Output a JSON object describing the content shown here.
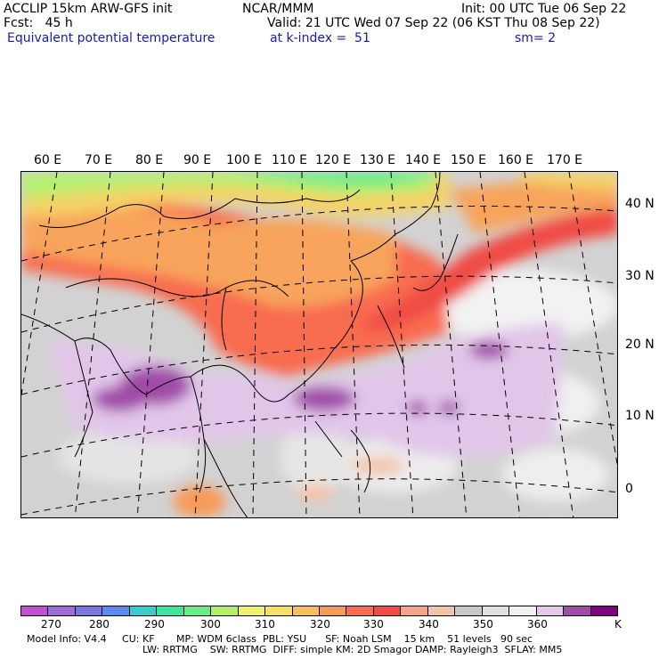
{
  "header": {
    "model": "ACCLIP 15km ARW-GFS init",
    "institution": "NCAR/MMM",
    "init": "Init: 00 UTC Tue 06 Sep 22",
    "fcst": "Fcst:   45 h",
    "valid": "Valid: 21 UTC Wed 07 Sep 22 (06 KST Thu 08 Sep 22)",
    "field": "Equivalent potential temperature",
    "level": "at k-index =  51",
    "smooth": "sm= 2"
  },
  "map": {
    "lon_labels": [
      "60 E",
      "70 E",
      "80 E",
      "90 E",
      "100 E",
      "110 E",
      "120 E",
      "130 E",
      "140 E",
      "150 E",
      "160 E",
      "170 E"
    ],
    "lat_labels": [
      "40 N",
      "30 N",
      "20 N",
      "10 N",
      "0"
    ]
  },
  "colorbar": {
    "colors": [
      "#c050d0",
      "#9c6cd8",
      "#7878e0",
      "#5a8cf0",
      "#3ccccc",
      "#3ee6a0",
      "#66ee88",
      "#b2f066",
      "#f0f070",
      "#f8e068",
      "#f8c05c",
      "#f89a58",
      "#f86c50",
      "#f04c44",
      "#f4a488",
      "#f4c4a8",
      "#c8c8c8",
      "#e0e0e0",
      "#f0f0f0",
      "#e6c8ea",
      "#a04ca8",
      "#800080"
    ],
    "ticks": [
      "270",
      "280",
      "290",
      "300",
      "310",
      "320",
      "330",
      "340",
      "350",
      "360",
      "K"
    ]
  },
  "footer": {
    "line1": "Model Info: V4.4     CU: KF       MP: WDM 6class  PBL: YSU      SF: Noah LSM    15 km    51 levels   90 sec",
    "line2": "LW: RRTMG    SW: RRTMG  DIFF: simple KM: 2D Smagor DAMP: Rayleigh3  SFLAY: MM5"
  }
}
